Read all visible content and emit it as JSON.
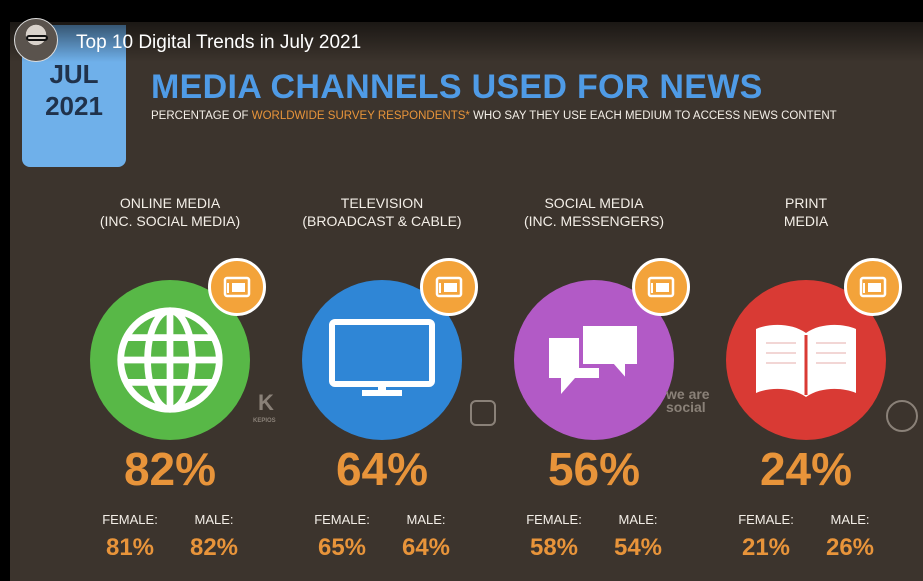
{
  "video": {
    "title": "Top 10 Digital Trends in July 2021"
  },
  "slide": {
    "date_month": "JUL",
    "date_year": "2021",
    "headline": "MEDIA CHANNELS USED FOR NEWS",
    "subhead_pre": "PERCENTAGE OF ",
    "subhead_highlight": "WORLDWIDE SURVEY RESPONDENTS*",
    "subhead_post": " WHO SAY THEY USE EACH MEDIUM TO ACCESS NEWS CONTENT",
    "female_label": "FEMALE:",
    "male_label": "MALE:",
    "channels": [
      {
        "line1": "ONLINE MEDIA",
        "line2": "(INC. SOCIAL MEDIA)",
        "pct": "82%",
        "female": "81%",
        "male": "82%",
        "color": "#58b847",
        "icon": "globe-icon"
      },
      {
        "line1": "TELEVISION",
        "line2": "(BROADCAST & CABLE)",
        "pct": "64%",
        "female": "65%",
        "male": "64%",
        "color": "#2f86d6",
        "icon": "television-icon"
      },
      {
        "line1": "SOCIAL MEDIA",
        "line2": "(INC. MESSENGERS)",
        "pct": "56%",
        "female": "58%",
        "male": "54%",
        "color": "#b25ac6",
        "icon": "chat-bubbles-icon"
      },
      {
        "line1": "PRINT",
        "line2": "MEDIA",
        "pct": "24%",
        "female": "21%",
        "male": "26%",
        "color": "#d93a34",
        "icon": "open-book-icon"
      }
    ],
    "logos": {
      "wearesocial": "we are social",
      "kepios": "KEPIOS"
    }
  }
}
